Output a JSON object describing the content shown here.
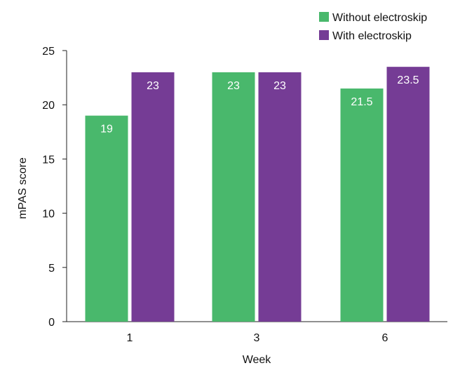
{
  "chart_data": {
    "type": "bar",
    "title": "",
    "xlabel": "Week",
    "ylabel": "mPAS score",
    "categories": [
      "1",
      "3",
      "6"
    ],
    "series": [
      {
        "name": "Without electroskip",
        "color": "#49b86c",
        "values": [
          19,
          23,
          21.5
        ],
        "labels": [
          "19",
          "23",
          "21.5"
        ]
      },
      {
        "name": "With electroskip",
        "color": "#753c95",
        "values": [
          23,
          23,
          23.5
        ],
        "labels": [
          "23",
          "23",
          "23.5"
        ]
      }
    ],
    "ylim": [
      0,
      25
    ],
    "yticks": [
      "0",
      "5",
      "10",
      "15",
      "20",
      "25"
    ],
    "grid": false,
    "legend_position": "top-right"
  }
}
